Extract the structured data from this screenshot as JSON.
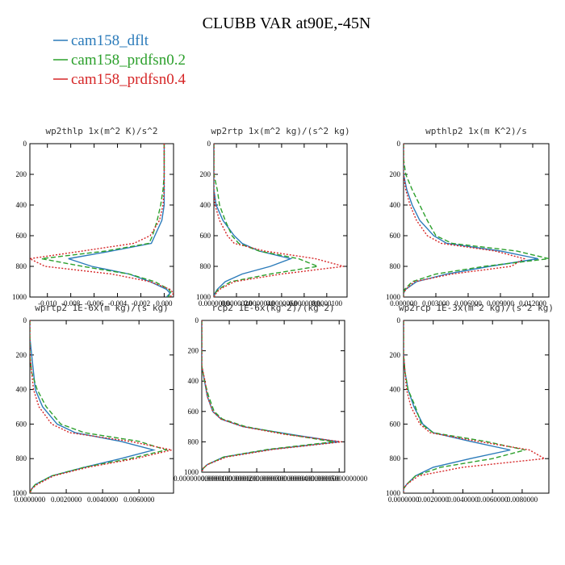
{
  "title": "CLUBB VAR at90E,-45N",
  "legend": [
    {
      "name": "cam158_dflt",
      "color": "#2b7bba"
    },
    {
      "name": "cam158_prdfsn0.2",
      "color": "#2ca02c"
    },
    {
      "name": "cam158_prdfsn0.4",
      "color": "#d62728"
    }
  ],
  "chart_data": [
    {
      "type": "line",
      "title": "wp2thlp  1x(m^2 K)/s^2",
      "y": [
        0,
        100,
        200,
        300,
        400,
        500,
        600,
        650,
        700,
        750,
        800,
        850,
        900,
        950,
        975,
        1000
      ],
      "ylim": [
        0,
        1000
      ],
      "yticks": [
        0,
        200,
        400,
        600,
        800,
        1000
      ],
      "y_inverted": true,
      "xlim": [
        -0.0115,
        0.0008
      ],
      "xticks": [
        {
          "value": -0.01,
          "label": "-0.010"
        },
        {
          "value": -0.008,
          "label": "-0.008"
        },
        {
          "value": -0.006,
          "label": "-0.006"
        },
        {
          "value": -0.004,
          "label": "-0.004"
        },
        {
          "value": -0.002,
          "label": "-0.002"
        },
        {
          "value": 0,
          "label": "0.000"
        }
      ],
      "series": [
        {
          "color": "#2b7bba",
          "dash": "solid",
          "values": [
            0,
            0,
            0,
            0,
            0,
            -0.0002,
            -0.0008,
            -0.0011,
            -0.0045,
            -0.0082,
            -0.0062,
            -0.003,
            -0.0012,
            0.0002,
            0.0005,
            0.0002
          ]
        },
        {
          "color": "#2ca02c",
          "dash": "dashed",
          "values": [
            0,
            0,
            0,
            -0.0001,
            -0.0003,
            -0.0006,
            -0.001,
            -0.0013,
            -0.005,
            -0.0105,
            -0.007,
            -0.003,
            -0.0008,
            0.0004,
            0.0006,
            0.0003
          ]
        },
        {
          "color": "#d62728",
          "dash": "dotted",
          "values": [
            0,
            0,
            0,
            0,
            -0.0001,
            -0.0004,
            -0.0012,
            -0.0026,
            -0.007,
            -0.0115,
            -0.0102,
            -0.0045,
            -0.0012,
            0.0005,
            0.0008,
            0.0005
          ]
        }
      ]
    },
    {
      "type": "line",
      "title": "wp2rtp  1x(m^2 kg)/(s^2 kg)",
      "y": [
        0,
        100,
        200,
        300,
        400,
        500,
        600,
        650,
        700,
        750,
        800,
        850,
        900,
        950,
        975,
        1000
      ],
      "ylim": [
        0,
        1000
      ],
      "yticks": [
        0,
        200,
        400,
        600,
        800,
        1000
      ],
      "y_inverted": true,
      "xlim": [
        0,
        1.18e-05
      ],
      "xticks": [
        {
          "value": 0,
          "label": "0.0000000"
        },
        {
          "value": 2e-06,
          "label": "0.0000020"
        },
        {
          "value": 4e-06,
          "label": "0.0000040"
        },
        {
          "value": 6e-06,
          "label": "0.0000060"
        },
        {
          "value": 8e-06,
          "label": "0.0000080"
        },
        {
          "value": 1e-05,
          "label": "0.0000100"
        }
      ],
      "series": [
        {
          "color": "#2b7bba",
          "dash": "solid",
          "values": [
            0,
            0,
            0,
            0,
            2e-07,
            8e-07,
            1.8e-06,
            2.5e-06,
            4e-06,
            6.8e-06,
            5e-06,
            2.5e-06,
            1e-06,
            3e-07,
            1e-07,
            0
          ]
        },
        {
          "color": "#2ca02c",
          "dash": "dashed",
          "values": [
            0,
            0,
            0,
            3e-07,
            5e-07,
            1e-06,
            1.6e-06,
            2.2e-06,
            4e-06,
            7.5e-06,
            9.2e-06,
            5e-06,
            1.5e-06,
            4e-07,
            1e-07,
            0
          ]
        },
        {
          "color": "#d62728",
          "dash": "dotted",
          "values": [
            0,
            0,
            0,
            0,
            1e-07,
            5e-07,
            1.2e-06,
            1.8e-06,
            4.5e-06,
            9e-06,
            1.15e-05,
            6e-06,
            1.8e-06,
            5e-07,
            2e-07,
            0
          ]
        }
      ]
    },
    {
      "type": "line",
      "title": "wpthlp2  1x(m K^2)/s",
      "y": [
        0,
        100,
        200,
        300,
        400,
        500,
        600,
        650,
        700,
        750,
        800,
        850,
        900,
        950,
        975,
        1000
      ],
      "ylim": [
        0,
        1000
      ],
      "yticks": [
        0,
        200,
        400,
        600,
        800,
        1000
      ],
      "y_inverted": true,
      "xlim": [
        0,
        0.0135
      ],
      "xticks": [
        {
          "value": 0,
          "label": "0.000000"
        },
        {
          "value": 0.003,
          "label": "0.003000"
        },
        {
          "value": 0.006,
          "label": "0.006000"
        },
        {
          "value": 0.009,
          "label": "0.009000"
        },
        {
          "value": 0.012,
          "label": "0.012000"
        }
      ],
      "series": [
        {
          "color": "#2b7bba",
          "dash": "solid",
          "values": [
            0,
            0,
            0,
            0.0003,
            0.0008,
            0.0015,
            0.0028,
            0.004,
            0.009,
            0.0125,
            0.008,
            0.004,
            0.0012,
            0.0002,
            0,
            0
          ]
        },
        {
          "color": "#2ca02c",
          "dash": "dashed",
          "values": [
            0,
            0,
            0.0002,
            0.0008,
            0.0015,
            0.0022,
            0.003,
            0.0045,
            0.0105,
            0.0135,
            0.0075,
            0.003,
            0.0008,
            0.0001,
            0,
            0
          ]
        },
        {
          "color": "#d62728",
          "dash": "dotted",
          "values": [
            0,
            0,
            0,
            0.0002,
            0.0006,
            0.0012,
            0.0022,
            0.0035,
            0.0085,
            0.0112,
            0.01,
            0.0045,
            0.001,
            0.0002,
            0,
            0
          ]
        }
      ]
    },
    {
      "type": "line",
      "title": "wprtp2  1E-6x(m kg)/(s kg)",
      "y": [
        0,
        100,
        200,
        300,
        400,
        500,
        600,
        650,
        700,
        750,
        800,
        850,
        900,
        950,
        975,
        1000
      ],
      "ylim": [
        0,
        1000
      ],
      "yticks": [
        0,
        200,
        400,
        600,
        800,
        1000
      ],
      "y_inverted": true,
      "xlim": [
        0,
        0.0079
      ],
      "xticks": [
        {
          "value": 0,
          "label": "0.0000000"
        },
        {
          "value": 0.002,
          "label": "0.0020000"
        },
        {
          "value": 0.004,
          "label": "0.0040000"
        },
        {
          "value": 0.006,
          "label": "0.0060000"
        }
      ],
      "series": [
        {
          "color": "#2b7bba",
          "dash": "solid",
          "values": [
            0,
            0,
            0.0001,
            0.0002,
            0.0003,
            0.0007,
            0.0015,
            0.0025,
            0.005,
            0.0068,
            0.005,
            0.003,
            0.0012,
            0.0003,
            0.0001,
            0
          ]
        },
        {
          "color": "#2ca02c",
          "dash": "dashed",
          "values": [
            0,
            0,
            0,
            0.0001,
            0.0004,
            0.0009,
            0.0017,
            0.003,
            0.006,
            0.0075,
            0.0055,
            0.003,
            0.0012,
            0.0003,
            0.0001,
            0
          ]
        },
        {
          "color": "#d62728",
          "dash": "dotted",
          "values": [
            0,
            0,
            0,
            0.0001,
            0.0002,
            0.0005,
            0.0012,
            0.0022,
            0.0055,
            0.0078,
            0.0058,
            0.0032,
            0.0013,
            0.0004,
            0.0001,
            0
          ]
        }
      ]
    },
    {
      "type": "line",
      "title": "rcp2  1E-6x(kg^2)/(kg^2)",
      "y": [
        0,
        100,
        200,
        300,
        400,
        500,
        600,
        650,
        700,
        750,
        800,
        850,
        900,
        950,
        975,
        1000
      ],
      "ylim": [
        0,
        1000
      ],
      "yticks": [
        0,
        200,
        400,
        600,
        800,
        1000
      ],
      "y_inverted": true,
      "xlim": [
        0,
        5.2e-05
      ],
      "xticks": [
        {
          "value": 0,
          "label": "0.00000000000000"
        },
        {
          "value": 1e-05,
          "label": "0.00001000000000"
        },
        {
          "value": 2e-05,
          "label": "0.00002000000000"
        },
        {
          "value": 3e-05,
          "label": "0.00003000000000"
        },
        {
          "value": 4e-05,
          "label": "0.00004000000000"
        },
        {
          "value": 5e-05,
          "label": "0.00005000000000"
        }
      ],
      "series": [
        {
          "color": "#2b7bba",
          "dash": "solid",
          "values": [
            0,
            0,
            0,
            0,
            1e-06,
            2e-06,
            4e-06,
            7e-06,
            1.5e-05,
            3.2e-05,
            5e-05,
            2.5e-05,
            8e-06,
            2e-06,
            5e-07,
            0
          ]
        },
        {
          "color": "#2ca02c",
          "dash": "dashed",
          "values": [
            0,
            0,
            0,
            0,
            1e-06,
            2.5e-06,
            4.5e-06,
            7.5e-06,
            1.6e-05,
            3.1e-05,
            4.8e-05,
            2.4e-05,
            8e-06,
            2e-06,
            5e-07,
            0
          ]
        },
        {
          "color": "#d62728",
          "dash": "dotted",
          "values": [
            0,
            0,
            0,
            0,
            1.2e-06,
            2e-06,
            4e-06,
            7e-06,
            1.5e-05,
            3e-05,
            5.1e-05,
            2.6e-05,
            9e-06,
            2e-06,
            5e-07,
            0
          ]
        }
      ]
    },
    {
      "type": "line",
      "title": "wp2rcp  1E-3x(m^2 kg)/(s^2 kg)",
      "y": [
        0,
        100,
        200,
        300,
        400,
        500,
        600,
        650,
        700,
        750,
        800,
        850,
        900,
        950,
        975,
        1000
      ],
      "ylim": [
        0,
        1000
      ],
      "yticks": [
        0,
        200,
        400,
        600,
        800,
        1000
      ],
      "y_inverted": true,
      "xlim": [
        0,
        0.0098
      ],
      "xticks": [
        {
          "value": 0,
          "label": "0.0000000"
        },
        {
          "value": 0.002,
          "label": "0.0020000"
        },
        {
          "value": 0.004,
          "label": "0.0040000"
        },
        {
          "value": 0.006,
          "label": "0.0060000"
        },
        {
          "value": 0.008,
          "label": "0.0080000"
        }
      ],
      "series": [
        {
          "color": "#2b7bba",
          "dash": "solid",
          "values": [
            0,
            0,
            0,
            0.0001,
            0.0003,
            0.0007,
            0.0013,
            0.002,
            0.0045,
            0.0072,
            0.0045,
            0.002,
            0.0008,
            0.0002,
            0,
            0
          ]
        },
        {
          "color": "#2ca02c",
          "dash": "dashed",
          "values": [
            0,
            0,
            0,
            0.0001,
            0.0003,
            0.0008,
            0.0012,
            0.002,
            0.0055,
            0.0082,
            0.006,
            0.0025,
            0.0008,
            0.0002,
            0,
            0
          ]
        },
        {
          "color": "#d62728",
          "dash": "dotted",
          "values": [
            0,
            0,
            0,
            0.0001,
            0.0002,
            0.0005,
            0.0011,
            0.0018,
            0.005,
            0.0085,
            0.0095,
            0.004,
            0.001,
            0.0002,
            0,
            0
          ]
        }
      ]
    }
  ]
}
